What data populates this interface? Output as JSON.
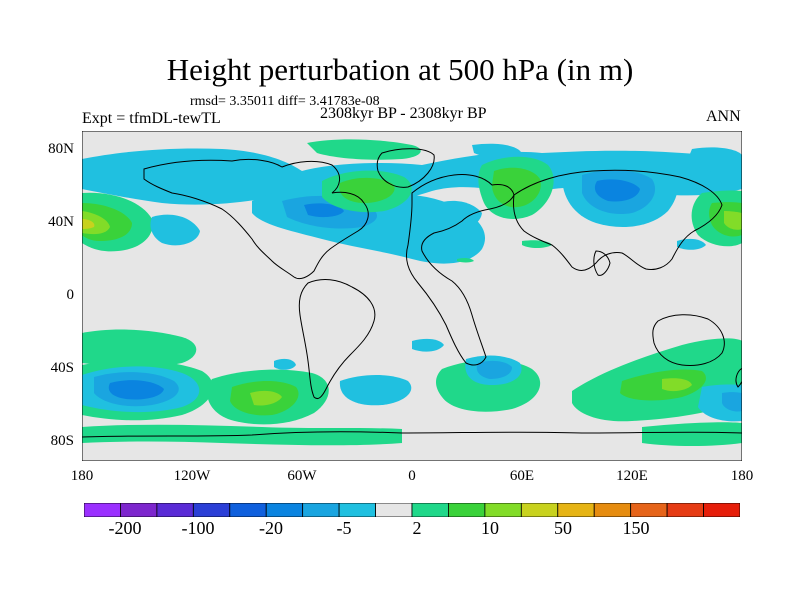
{
  "figure": {
    "title": "Height perturbation at 500 hPa (in m)",
    "stats": "rmsd= 3.35011 diff= 3.41783e-08",
    "expt": "Expt = tfmDL-tewTL",
    "period": "2308kyr BP - 2308kyr BP",
    "season": "ANN"
  },
  "axes": {
    "lat_labels": [
      "80N",
      "40N",
      "0",
      "40S",
      "80S"
    ],
    "lon_labels": [
      "180",
      "120W",
      "60W",
      "0",
      "60E",
      "120E",
      "180"
    ]
  },
  "colorbar": {
    "colors": [
      "#9b30ff",
      "#7d26cd",
      "#5a2bd6",
      "#2b3fd6",
      "#1060dd",
      "#0a84e0",
      "#1aa5e0",
      "#20c0e0",
      "#e6e6e6",
      "#20d88a",
      "#3ad23a",
      "#82dc28",
      "#c8d21e",
      "#e6b414",
      "#e68c10",
      "#e6641a",
      "#e63c14",
      "#e61e0a"
    ],
    "labels": [
      "-200",
      "-100",
      "-20",
      "-5",
      "2",
      "10",
      "50",
      "150"
    ]
  },
  "chart_data": {
    "type": "filled-contour-map",
    "title": "Height perturbation at 500 hPa (in m)",
    "variable": "500 hPa geopotential height perturbation",
    "units": "m",
    "lat_range": [
      -90,
      90
    ],
    "lon_range": [
      -180,
      180
    ],
    "colorbar_labels": [
      -200,
      -100,
      -20,
      -5,
      2,
      10,
      50,
      150
    ],
    "colors": {
      "neutral": "#e6e6e6",
      "pos1": "#20d88a",
      "pos2": "#3ad23a",
      "pos3": "#82dc28",
      "pos4": "#c8d21e",
      "pos5": "#e6b414",
      "neg1": "#20c0e0",
      "neg2": "#1aa5e0",
      "neg3": "#0a84e0",
      "land": "#000000"
    }
  }
}
